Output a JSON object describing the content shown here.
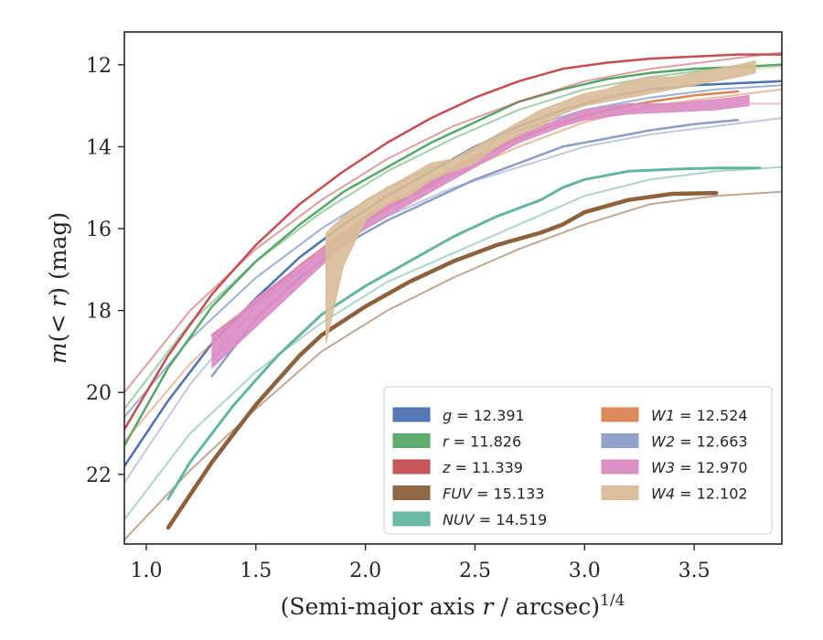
{
  "chart_data": {
    "type": "line",
    "xlabel": "(Semi-major axis r / arcsec)^1/4",
    "xlabel_parts": {
      "prefix": "(Semi-major axis ",
      "var": "r",
      "suffix": " / arcsec)",
      "exponent": "1/4"
    },
    "ylabel": "m(< r) (mag)",
    "ylabel_parts": {
      "var": "m",
      "rest": "(< ",
      "var2": "r",
      "rest2": ") (mag)"
    },
    "xlim": [
      0.9,
      3.9
    ],
    "ylim": [
      23.7,
      11.2
    ],
    "y_inverted": true,
    "grid": false,
    "legend_position": "lower-right",
    "x_ticks": [
      1.0,
      1.5,
      2.0,
      2.5,
      3.0,
      3.5
    ],
    "x_tick_labels": [
      "1.0",
      "1.5",
      "2.0",
      "2.5",
      "3.0",
      "3.5"
    ],
    "y_ticks": [
      12,
      14,
      16,
      18,
      20,
      22
    ],
    "y_tick_labels": [
      "12",
      "14",
      "16",
      "18",
      "20",
      "22"
    ],
    "series": [
      {
        "name": "g",
        "legend_value": "= 12.391",
        "color": "#4c72b0",
        "width": 1.4,
        "fit": {
          "x": [
            0.9,
            1.2,
            1.5,
            1.8,
            2.1,
            2.4,
            2.7,
            3.0,
            3.3,
            3.6,
            3.9
          ],
          "y": [
            20.6,
            18.7,
            17.2,
            16.0,
            15.0,
            14.3,
            13.6,
            13.1,
            12.8,
            12.6,
            12.5
          ]
        },
        "x": [
          0.9,
          1.1,
          1.3,
          1.5,
          1.7,
          1.9,
          2.1,
          2.3,
          2.5,
          2.7,
          2.9,
          3.1,
          3.3,
          3.5,
          3.7,
          3.9
        ],
        "y": [
          21.8,
          20.2,
          18.8,
          17.7,
          16.7,
          15.9,
          15.2,
          14.6,
          14.0,
          13.5,
          13.1,
          12.8,
          12.6,
          12.5,
          12.45,
          12.4
        ],
        "width_band": 2.5
      },
      {
        "name": "r",
        "legend_value": "= 11.826",
        "color": "#55a868",
        "width": 1.4,
        "fit": {
          "x": [
            0.9,
            1.2,
            1.5,
            1.8,
            2.1,
            2.4,
            2.7,
            3.0,
            3.3,
            3.6,
            3.9
          ],
          "y": [
            20.4,
            18.3,
            16.8,
            15.6,
            14.6,
            13.8,
            13.1,
            12.6,
            12.3,
            12.1,
            12.0
          ]
        },
        "x": [
          0.9,
          1.1,
          1.3,
          1.5,
          1.7,
          1.9,
          2.1,
          2.3,
          2.5,
          2.7,
          2.9,
          3.1,
          3.3,
          3.5,
          3.7,
          3.9
        ],
        "y": [
          21.3,
          19.4,
          17.9,
          16.8,
          15.9,
          15.1,
          14.5,
          13.9,
          13.4,
          12.9,
          12.6,
          12.35,
          12.2,
          12.1,
          12.05,
          12.0
        ],
        "width_band": 2.5
      },
      {
        "name": "z",
        "legend_value": "= 11.339",
        "color": "#c44e52",
        "width": 1.4,
        "fit": {
          "x": [
            0.9,
            1.2,
            1.5,
            1.8,
            2.1,
            2.4,
            2.7,
            3.0,
            3.3,
            3.6,
            3.9
          ],
          "y": [
            20.0,
            18.0,
            16.5,
            15.3,
            14.3,
            13.5,
            12.9,
            12.4,
            12.1,
            11.9,
            11.7
          ]
        },
        "x": [
          0.9,
          1.1,
          1.3,
          1.5,
          1.7,
          1.9,
          2.1,
          2.3,
          2.5,
          2.7,
          2.9,
          3.1,
          3.3,
          3.5,
          3.7,
          3.9
        ],
        "y": [
          20.9,
          19.1,
          17.6,
          16.4,
          15.4,
          14.6,
          13.9,
          13.3,
          12.8,
          12.4,
          12.1,
          11.95,
          11.85,
          11.8,
          11.75,
          11.75
        ],
        "width_band": 2.5
      },
      {
        "name": "FUV",
        "legend_value": "= 15.133",
        "color": "#8c613c",
        "width": 1.4,
        "fit": {
          "x": [
            0.9,
            1.2,
            1.5,
            1.8,
            2.1,
            2.4,
            2.7,
            3.0,
            3.3,
            3.6,
            3.9
          ],
          "y": [
            23.6,
            21.9,
            20.4,
            19.0,
            18.0,
            17.2,
            16.5,
            15.9,
            15.4,
            15.2,
            15.1
          ]
        },
        "x": [
          1.1,
          1.2,
          1.3,
          1.4,
          1.5,
          1.6,
          1.7,
          1.8,
          2.0,
          2.2,
          2.4,
          2.6,
          2.8,
          2.9,
          3.0,
          3.2,
          3.4,
          3.6
        ],
        "y": [
          23.3,
          22.5,
          21.7,
          21.0,
          20.3,
          19.7,
          19.1,
          18.6,
          17.9,
          17.3,
          16.8,
          16.4,
          16.1,
          15.9,
          15.6,
          15.3,
          15.15,
          15.13
        ],
        "width_band": 4.5
      },
      {
        "name": "NUV",
        "legend_value": "= 14.519",
        "color": "#64b5a0",
        "width": 1.4,
        "fit": {
          "x": [
            0.9,
            1.2,
            1.5,
            1.8,
            2.1,
            2.4,
            2.7,
            3.0,
            3.3,
            3.6,
            3.9
          ],
          "y": [
            23.1,
            21.0,
            19.5,
            18.3,
            17.3,
            16.6,
            15.9,
            15.2,
            14.8,
            14.6,
            14.5
          ]
        },
        "x": [
          1.1,
          1.2,
          1.3,
          1.4,
          1.5,
          1.6,
          1.7,
          1.8,
          2.0,
          2.2,
          2.4,
          2.6,
          2.8,
          2.9,
          3.0,
          3.2,
          3.4,
          3.6,
          3.8
        ],
        "y": [
          22.6,
          21.7,
          21.0,
          20.3,
          19.7,
          19.1,
          18.6,
          18.1,
          17.4,
          16.8,
          16.2,
          15.7,
          15.3,
          15.0,
          14.8,
          14.6,
          14.55,
          14.52,
          14.52
        ],
        "width_band": 3.0
      },
      {
        "name": "W1",
        "legend_value": "= 12.524",
        "color": "#dd8452",
        "width": 1.4,
        "fit": {
          "x": [
            0.9,
            1.2,
            1.5,
            1.8,
            2.1,
            2.4,
            2.7,
            3.0,
            3.3,
            3.6,
            3.9
          ],
          "y": [
            21.2,
            19.3,
            17.8,
            16.5,
            15.5,
            14.7,
            14.0,
            13.4,
            13.0,
            12.8,
            12.6
          ]
        },
        "x": [
          1.3,
          1.5,
          1.7,
          1.9,
          2.1,
          2.3,
          2.5,
          2.7,
          2.9,
          3.1,
          3.3,
          3.5,
          3.7
        ],
        "y": [
          18.6,
          17.8,
          16.9,
          16.1,
          15.5,
          14.9,
          14.3,
          13.8,
          13.4,
          13.1,
          12.9,
          12.75,
          12.65
        ],
        "width_band": 2.5
      },
      {
        "name": "W2",
        "legend_value": "= 12.663",
        "color": "#8c9dc7",
        "width": 1.4,
        "fit": {
          "x": [
            0.9,
            1.2,
            1.5,
            1.8,
            2.1,
            2.4,
            2.7,
            3.0,
            3.3,
            3.6,
            3.9
          ],
          "y": [
            22.2,
            19.8,
            17.9,
            16.6,
            15.7,
            15.0,
            14.5,
            14.0,
            13.7,
            13.5,
            13.3
          ]
        },
        "x": [
          1.3,
          1.5,
          1.7,
          1.9,
          2.1,
          2.3,
          2.5,
          2.7,
          2.9,
          3.1,
          3.3,
          3.5,
          3.7
        ],
        "y": [
          19.6,
          18.2,
          17.2,
          16.4,
          15.8,
          15.3,
          14.8,
          14.4,
          14.0,
          13.8,
          13.6,
          13.45,
          13.35
        ],
        "width_band": 2.5
      },
      {
        "name": "W3",
        "legend_value": "= 12.970",
        "color": "#da8bc3",
        "width": 1.4,
        "fit": {
          "x": [
            3.75,
            3.9
          ],
          "y": [
            12.95,
            12.95
          ]
        },
        "upper": {
          "x": [
            1.3,
            1.4,
            1.5,
            1.6,
            1.7,
            1.8,
            1.9,
            2.0,
            2.1,
            2.2,
            2.3,
            2.4,
            2.5,
            2.6,
            2.7,
            2.8,
            2.9,
            3.0,
            3.2,
            3.4,
            3.6,
            3.75
          ],
          "y": [
            18.6,
            18.2,
            17.7,
            17.3,
            16.9,
            16.5,
            16.1,
            15.7,
            15.4,
            15.1,
            14.8,
            14.5,
            14.2,
            14.0,
            13.7,
            13.5,
            13.3,
            13.1,
            12.95,
            12.95,
            12.85,
            12.75
          ]
        },
        "lower": {
          "x": [
            1.3,
            1.4,
            1.5,
            1.6,
            1.7,
            1.8,
            1.9,
            2.0,
            2.1,
            2.2,
            2.3,
            2.4,
            2.5,
            2.6,
            2.7,
            2.8,
            2.9,
            3.0,
            3.2,
            3.4,
            3.6,
            3.75
          ],
          "y": [
            19.4,
            18.9,
            18.4,
            17.9,
            17.4,
            16.9,
            16.4,
            16.0,
            15.7,
            15.4,
            15.1,
            14.8,
            14.5,
            14.2,
            13.9,
            13.7,
            13.5,
            13.35,
            13.2,
            13.15,
            13.1,
            13.0
          ]
        }
      },
      {
        "name": "W4",
        "legend_value": "= 12.102",
        "color": "#d9bd98",
        "width": 1.4,
        "fit": {
          "x": [
            3.75,
            3.9
          ],
          "y": [
            12.1,
            12.05
          ]
        },
        "upper": {
          "x": [
            1.82,
            1.9,
            2.0,
            2.1,
            2.2,
            2.3,
            2.4,
            2.5,
            2.6,
            2.7,
            2.8,
            2.9,
            3.0,
            3.1,
            3.2,
            3.3,
            3.4,
            3.5,
            3.6,
            3.7,
            3.78
          ],
          "y": [
            16.1,
            15.7,
            15.3,
            15.0,
            14.7,
            14.4,
            14.3,
            14.0,
            13.7,
            13.4,
            13.1,
            12.9,
            12.7,
            12.6,
            12.4,
            12.3,
            12.3,
            12.2,
            12.1,
            12.0,
            11.9
          ]
        },
        "lower": {
          "x": [
            1.82,
            1.9,
            2.0,
            2.1,
            2.2,
            2.3,
            2.4,
            2.5,
            2.6,
            2.7,
            2.8,
            2.9,
            3.0,
            3.1,
            3.2,
            3.3,
            3.4,
            3.5,
            3.6,
            3.7,
            3.78
          ],
          "y": [
            18.8,
            16.9,
            15.8,
            15.4,
            15.2,
            14.8,
            14.6,
            14.4,
            14.0,
            13.7,
            13.5,
            13.2,
            13.0,
            12.9,
            12.8,
            12.7,
            12.6,
            12.5,
            12.4,
            12.3,
            12.2
          ]
        }
      }
    ]
  }
}
